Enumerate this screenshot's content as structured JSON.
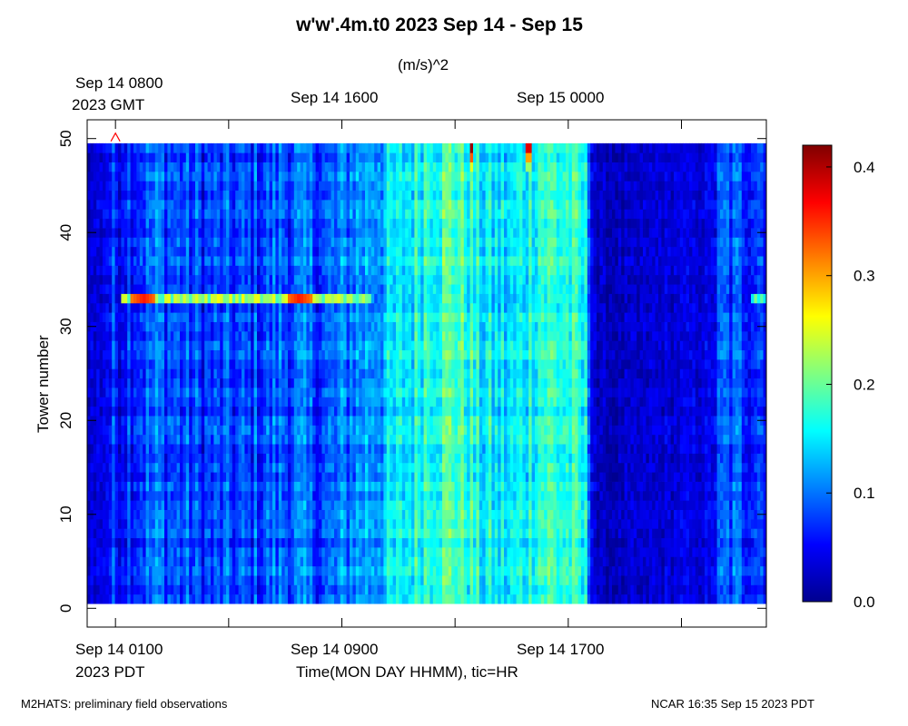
{
  "title": "w'w'.4m.t0 2023 Sep 14 - Sep 15",
  "units": "(m/s)^2",
  "top_axis": {
    "first_label_line1": "Sep 14 0800",
    "first_label_line2": "2023 GMT",
    "labels": [
      "Sep 14 0800",
      "Sep 14 1600",
      "Sep 15 0000"
    ]
  },
  "bottom_axis": {
    "first_label_line1": "Sep 14 0100",
    "first_label_line2": "2023 PDT",
    "labels": [
      "Sep 14 0100",
      "Sep 14 0900",
      "Sep 14 1700"
    ],
    "xlabel": "Time(MON DAY HHMM), tic=HR"
  },
  "footer": {
    "left": "M2HATS: preliminary field observations",
    "right": "NCAR 16:35 Sep 15 2023 PDT"
  },
  "chart_data": {
    "type": "heatmap",
    "title": "w'w'.4m.t0 2023 Sep 14 - Sep 15",
    "xlabel": "Time(MON DAY HHMM), tic=HR",
    "ylabel": "Tower number",
    "units": "(m/s)^2",
    "x_range_pdt": [
      "Sep 14 0000",
      "Sep 15 0000"
    ],
    "x_tick_hours_pdt": [
      1,
      5,
      9,
      13,
      17,
      21
    ],
    "y_ticks": [
      0,
      10,
      20,
      30,
      40,
      50
    ],
    "ylim": [
      -2,
      52
    ],
    "tower_range": [
      1,
      49
    ],
    "colorbar": {
      "ticks": [
        "0.0",
        "0.1",
        "0.2",
        "0.3",
        "0.4"
      ],
      "range": [
        0.0,
        0.42
      ],
      "colors": [
        "#00008f",
        "#0000ff",
        "#0080ff",
        "#00ffff",
        "#80ff80",
        "#ffff00",
        "#ff8000",
        "#ff0000",
        "#800000"
      ]
    },
    "time_profile_pdt": [
      {
        "hour": 0.0,
        "level": 0.03
      },
      {
        "hour": 0.5,
        "level": 0.04
      },
      {
        "hour": 1.2,
        "level": 0.07
      },
      {
        "hour": 2.5,
        "level": 0.09
      },
      {
        "hour": 4.0,
        "level": 0.07
      },
      {
        "hour": 5.5,
        "level": 0.07
      },
      {
        "hour": 7.0,
        "level": 0.09
      },
      {
        "hour": 8.5,
        "level": 0.08
      },
      {
        "hour": 9.5,
        "level": 0.11
      },
      {
        "hour": 11.0,
        "level": 0.14
      },
      {
        "hour": 12.0,
        "level": 0.18
      },
      {
        "hour": 13.0,
        "level": 0.19
      },
      {
        "hour": 14.0,
        "level": 0.15
      },
      {
        "hour": 15.0,
        "level": 0.14
      },
      {
        "hour": 16.0,
        "level": 0.18
      },
      {
        "hour": 17.0,
        "level": 0.17
      },
      {
        "hour": 17.6,
        "level": 0.15
      },
      {
        "hour": 18.0,
        "level": 0.02
      },
      {
        "hour": 19.0,
        "level": 0.02
      },
      {
        "hour": 20.0,
        "level": 0.03
      },
      {
        "hour": 22.0,
        "level": 0.04
      },
      {
        "hour": 22.5,
        "level": 0.08
      },
      {
        "hour": 24.0,
        "level": 0.08
      }
    ],
    "highlighted_row": {
      "tower": 33,
      "segments_pdt": [
        {
          "start": 1.2,
          "end": 10.0,
          "level": 0.22
        },
        {
          "start": 23.5,
          "end": 24.0,
          "level": 0.18
        }
      ],
      "peaks_pdt": [
        {
          "hour": 2.0,
          "level": 0.36
        },
        {
          "hour": 7.5,
          "level": 0.36
        }
      ]
    },
    "hot_spots_pdt": [
      {
        "hour": 13.6,
        "tower": 49,
        "level": 0.41
      },
      {
        "hour": 15.6,
        "tower": 49,
        "level": 0.38
      }
    ],
    "annotation": {
      "marker": "triangle",
      "hour": 1,
      "tower": 50,
      "color": "#ff0000"
    }
  }
}
